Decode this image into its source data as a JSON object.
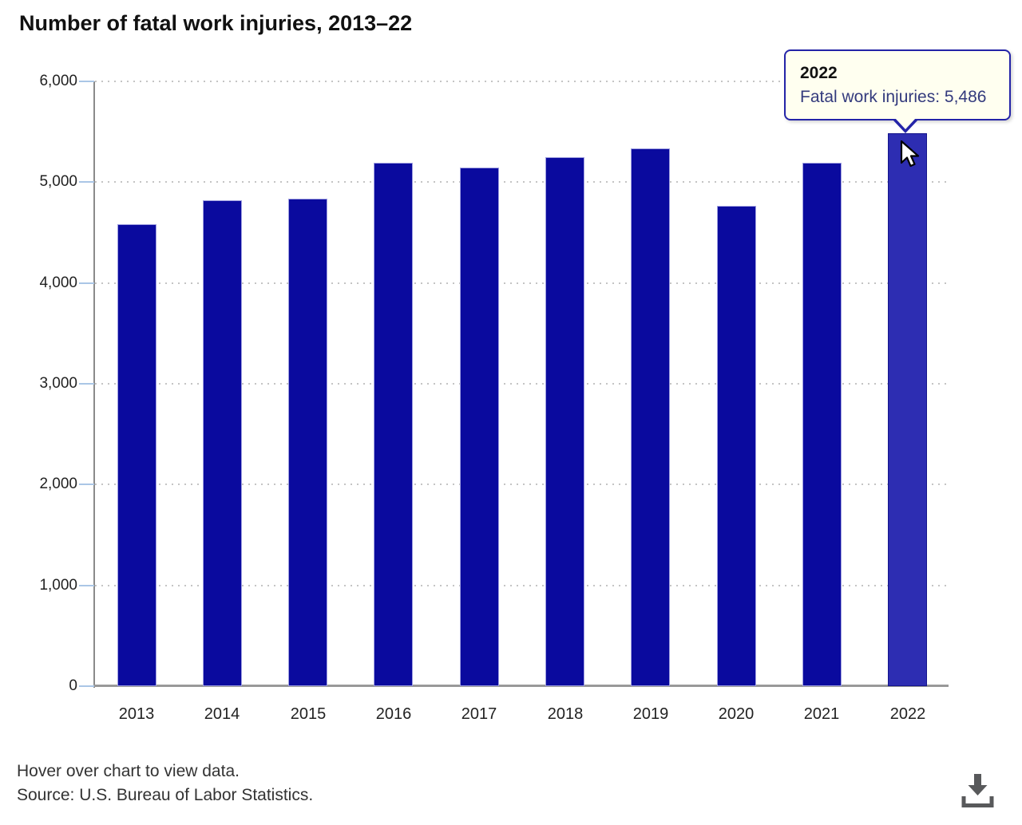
{
  "page_title": "Number of fatal work injuries, 2013–22",
  "chart_data": {
    "type": "bar",
    "title": "Number of fatal work injuries, 2013–22",
    "categories": [
      "2013",
      "2014",
      "2015",
      "2016",
      "2017",
      "2018",
      "2019",
      "2020",
      "2021",
      "2022"
    ],
    "values": [
      4585,
      4821,
      4836,
      5190,
      5147,
      5250,
      5333,
      4764,
      5190,
      5486
    ],
    "xlabel": "",
    "ylabel": "",
    "ylim": [
      0,
      6000
    ],
    "ytick_step": 1000,
    "ytick_labels": [
      "0",
      "1,000",
      "2,000",
      "3,000",
      "4,000",
      "5,000",
      "6,000"
    ],
    "grid": "horizontal-dotted",
    "legend": "none",
    "bar_color": "#0a0a9e",
    "bar_border_color": "#9f9fe0",
    "highlighted_index": 9,
    "highlight_color": "#2d2db2",
    "highlight_border_color": "#15158c",
    "axis_color": "#8a8a8a",
    "tick_color": "#aac6e6",
    "gridline_color": "#c4c4c4"
  },
  "tooltip": {
    "year": "2022",
    "text": "Fatal work injuries: 5,486",
    "bg_color": "#fffff0",
    "border_color": "#2424a8",
    "value_text_color": "#333a7d"
  },
  "footer": {
    "hover_note": "Hover over chart to view data.",
    "source": "Source: U.S. Bureau of Labor Statistics."
  },
  "icons": {
    "download": "download-icon",
    "cursor": "mouse-cursor-icon"
  }
}
